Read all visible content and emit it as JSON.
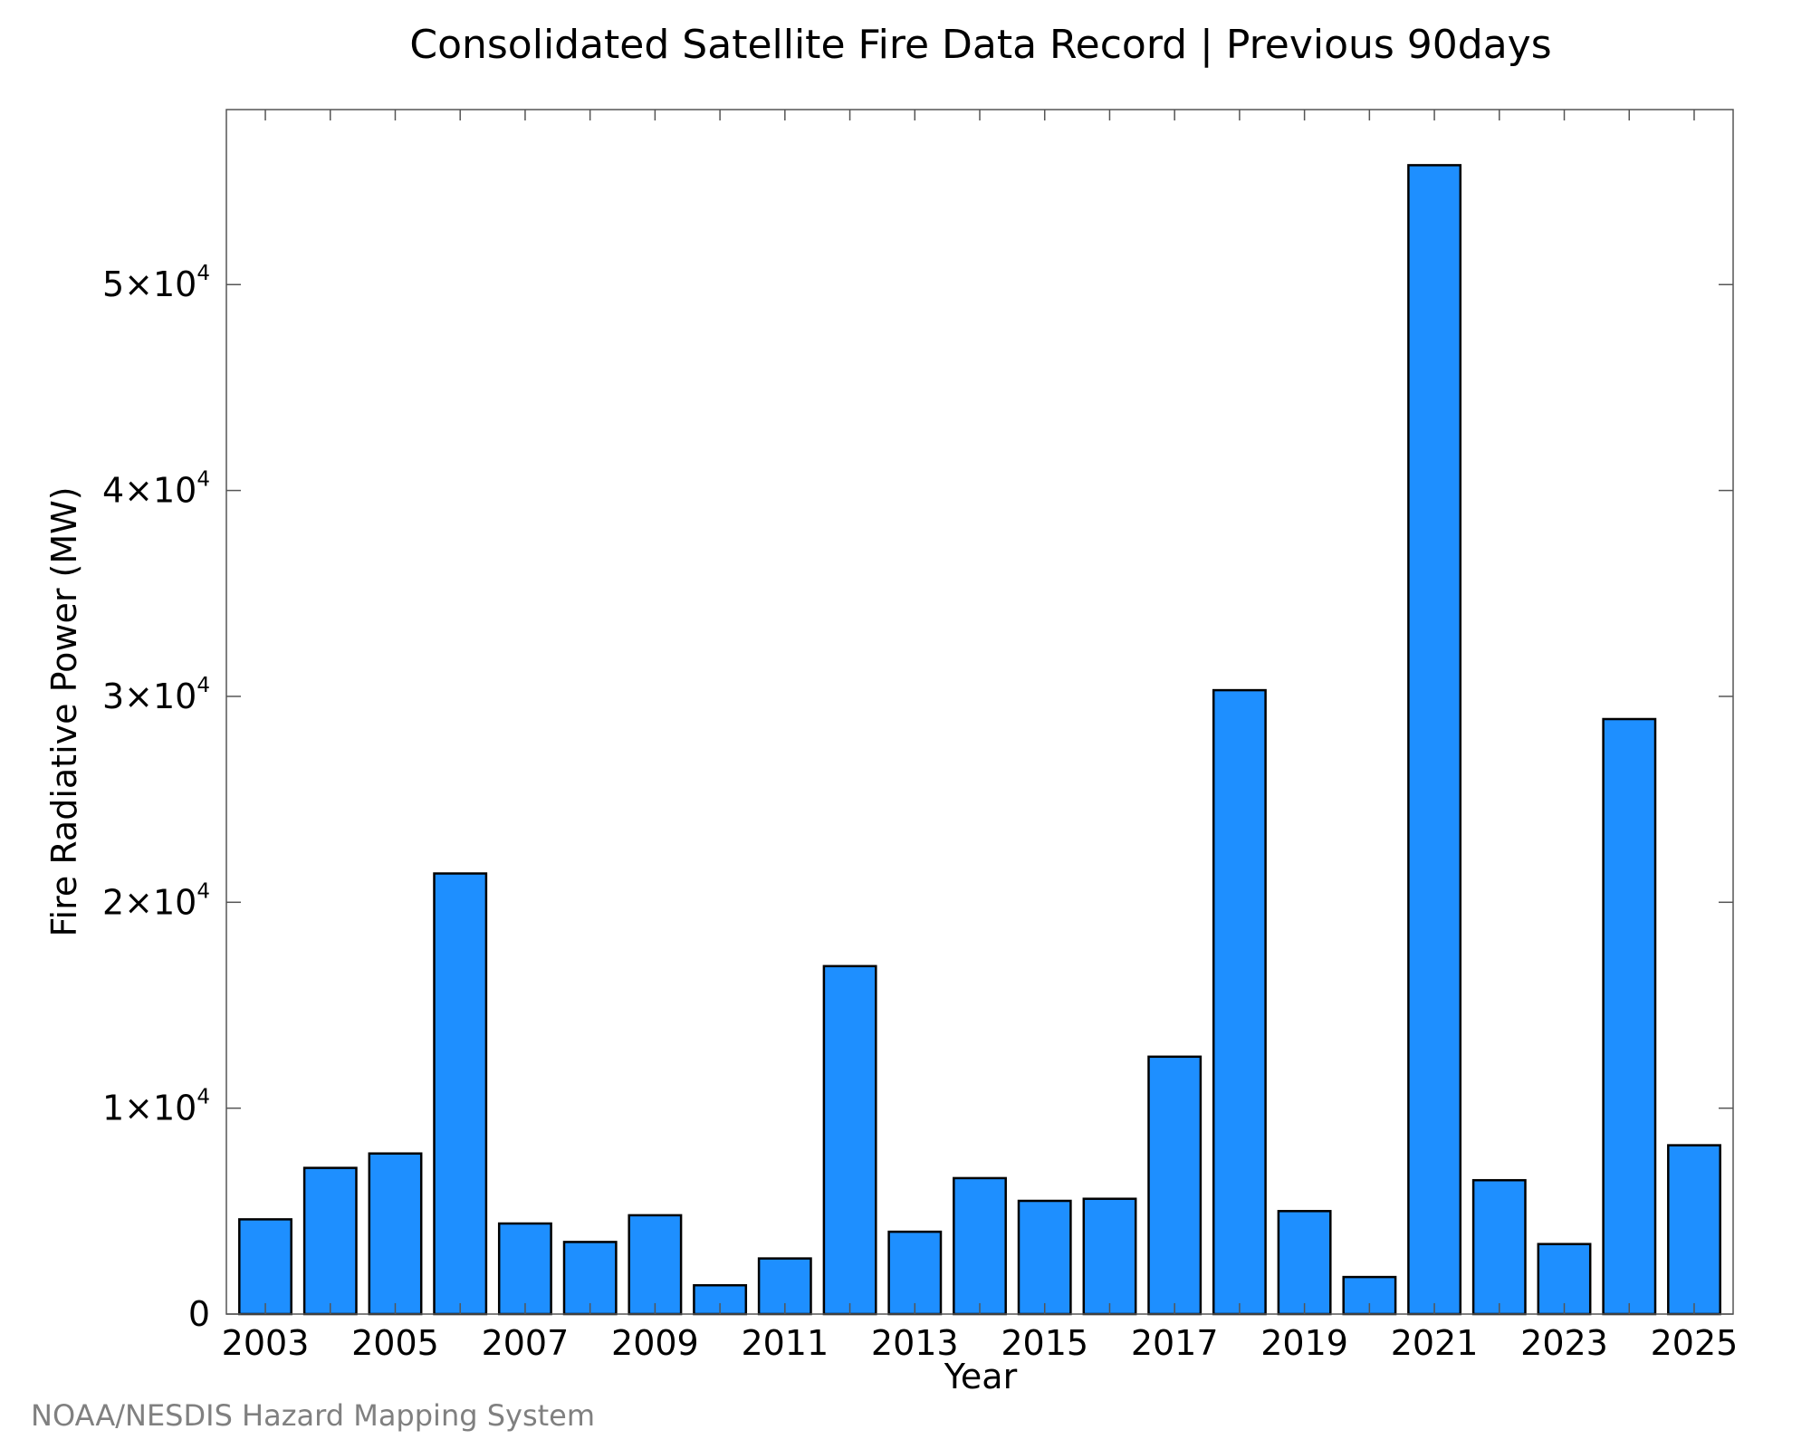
{
  "chart_data": {
    "type": "bar",
    "title": "Consolidated Satellite Fire Data Record | Previous 90days",
    "xlabel": "Year",
    "ylabel": "Fire Radiative Power (MW)",
    "ylim": [
      0,
      58500
    ],
    "xlim": [
      2002.4,
      2025.6
    ],
    "grid": false,
    "bar_color": "#1E8FFF",
    "edge_color": "#000000",
    "categories": [
      2003,
      2004,
      2005,
      2006,
      2007,
      2008,
      2009,
      2010,
      2011,
      2012,
      2013,
      2014,
      2015,
      2016,
      2017,
      2018,
      2019,
      2020,
      2021,
      2022,
      2023,
      2024,
      2025
    ],
    "values": [
      4600,
      7100,
      7800,
      21400,
      4400,
      3500,
      4800,
      1400,
      2700,
      16900,
      4000,
      6600,
      5500,
      5600,
      12500,
      30300,
      5000,
      1800,
      55800,
      6500,
      3400,
      28900,
      8200
    ],
    "x_ticks": [
      {
        "value": 2003,
        "label": "2003"
      },
      {
        "value": 2005,
        "label": "2005"
      },
      {
        "value": 2007,
        "label": "2007"
      },
      {
        "value": 2009,
        "label": "2009"
      },
      {
        "value": 2011,
        "label": "2011"
      },
      {
        "value": 2013,
        "label": "2013"
      },
      {
        "value": 2015,
        "label": "2015"
      },
      {
        "value": 2017,
        "label": "2017"
      },
      {
        "value": 2019,
        "label": "2019"
      },
      {
        "value": 2021,
        "label": "2021"
      },
      {
        "value": 2023,
        "label": "2023"
      },
      {
        "value": 2025,
        "label": "2025"
      }
    ],
    "y_ticks": [
      {
        "value": 0,
        "label": "0",
        "exp": ""
      },
      {
        "value": 10000,
        "label": "1×10",
        "exp": "4"
      },
      {
        "value": 20000,
        "label": "2×10",
        "exp": "4"
      },
      {
        "value": 30000,
        "label": "3×10",
        "exp": "4"
      },
      {
        "value": 40000,
        "label": "4×10",
        "exp": "4"
      },
      {
        "value": 50000,
        "label": "5×10",
        "exp": "4"
      }
    ]
  },
  "credit": "NOAA/NESDIS Hazard Mapping System"
}
